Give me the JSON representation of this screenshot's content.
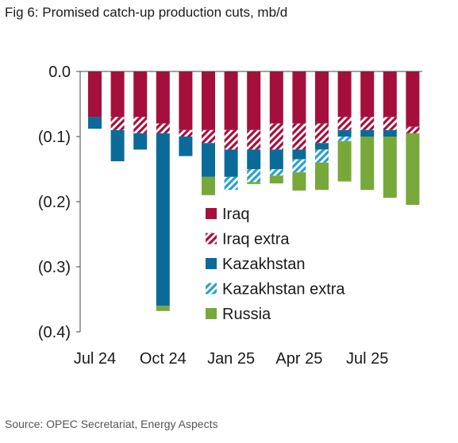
{
  "title": "Fig 6: Promised catch-up production cuts, mb/d",
  "source": "Source: OPEC Secretariat, Energy Aspects",
  "chart_data": {
    "type": "bar",
    "stacked": true,
    "categories": [
      "Jul 24",
      "Aug 24",
      "Sep 24",
      "Oct 24",
      "Nov 24",
      "Dec 24",
      "Jan 25",
      "Feb 25",
      "Mar 25",
      "Apr 25",
      "May 25",
      "Jun 25",
      "Jul 25",
      "Aug 25",
      "Sep 25"
    ],
    "x_tick_labels": [
      "Jul 24",
      "Oct 24",
      "Jan 25",
      "Apr 25",
      "Jul 25"
    ],
    "x_tick_indices": [
      0,
      3,
      6,
      9,
      12
    ],
    "y_tick_labels": [
      "0.0",
      "(0.1)",
      "(0.2)",
      "(0.3)",
      "(0.4)"
    ],
    "y_tick_values": [
      0,
      -0.1,
      -0.2,
      -0.3,
      -0.4
    ],
    "ylim": [
      -0.4,
      0
    ],
    "legend_position": "center-right",
    "series": [
      {
        "name": "Iraq",
        "color": "#a50f3c",
        "pattern": "solid",
        "values": [
          -0.07,
          -0.07,
          -0.07,
          -0.08,
          -0.09,
          -0.09,
          -0.09,
          -0.09,
          -0.08,
          -0.08,
          -0.08,
          -0.07,
          -0.07,
          -0.07,
          -0.085
        ]
      },
      {
        "name": "Iraq extra",
        "color": "#a50f3c",
        "pattern": "hatch",
        "values": [
          0,
          -0.02,
          -0.025,
          -0.015,
          -0.01,
          -0.02,
          -0.03,
          -0.03,
          -0.04,
          -0.04,
          -0.03,
          -0.02,
          -0.02,
          -0.02,
          -0.01
        ]
      },
      {
        "name": "Kazakhstan",
        "color": "#0a6b9a",
        "pattern": "solid",
        "values": [
          -0.018,
          -0.048,
          -0.025,
          -0.265,
          -0.03,
          -0.052,
          -0.042,
          -0.03,
          -0.03,
          -0.015,
          -0.01,
          -0.01,
          -0.01,
          -0.01,
          0
        ]
      },
      {
        "name": "Kazakhstan extra",
        "color": "#2a9fd0",
        "pattern": "hatch",
        "values": [
          0,
          0,
          0,
          0,
          0,
          0,
          -0.02,
          -0.02,
          -0.01,
          -0.02,
          -0.02,
          -0.007,
          0,
          0,
          0
        ]
      },
      {
        "name": "Russia",
        "color": "#78a83a",
        "pattern": "solid",
        "values": [
          0,
          0,
          0,
          -0.008,
          0,
          -0.028,
          0,
          -0.003,
          -0.012,
          -0.028,
          -0.042,
          -0.062,
          -0.082,
          -0.094,
          -0.11
        ]
      }
    ]
  }
}
